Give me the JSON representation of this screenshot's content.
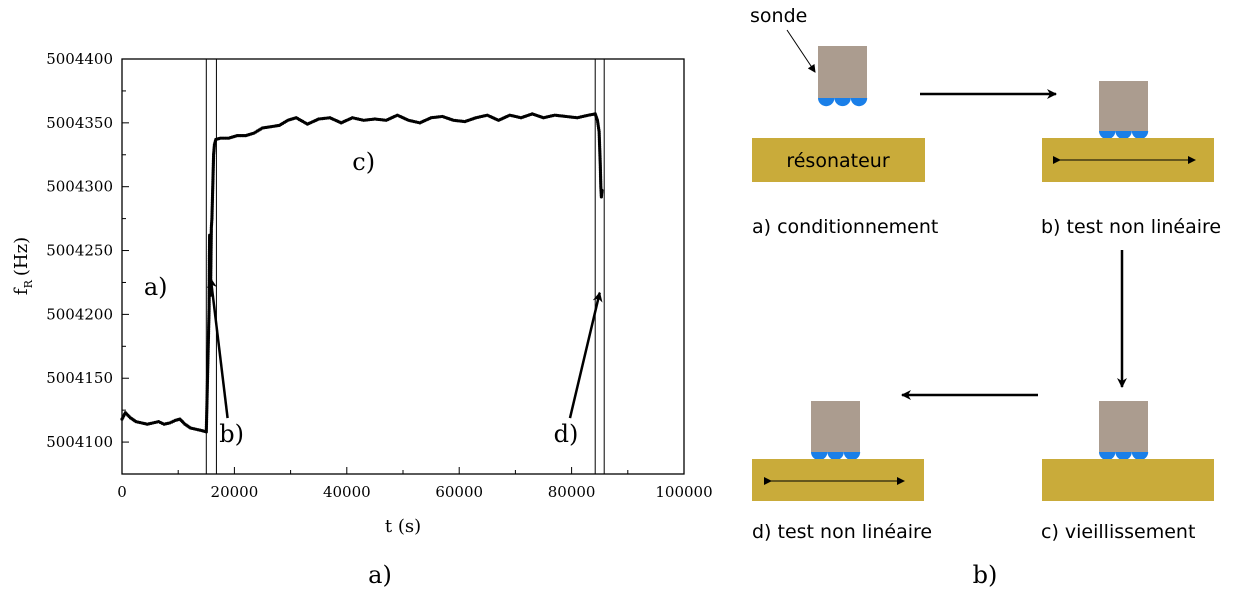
{
  "chart_data": {
    "type": "scatter",
    "title": "",
    "xlabel": "t (s)",
    "ylabel": "f",
    "ylabel_subscript": "R",
    "ylabel_unit": "(Hz)",
    "xlim": [
      0,
      100000
    ],
    "ylim": [
      5004075,
      5004400
    ],
    "xticks": [
      0,
      20000,
      40000,
      60000,
      80000,
      100000
    ],
    "yticks": [
      5004100,
      5004150,
      5004200,
      5004250,
      5004300,
      5004350,
      5004400
    ],
    "grid": false,
    "series": [
      {
        "points": [
          [
            0,
            5004118
          ],
          [
            600,
            5004123
          ],
          [
            1500,
            5004119
          ],
          [
            2500,
            5004116
          ],
          [
            3500,
            5004115
          ],
          [
            4500,
            5004114
          ],
          [
            5500,
            5004115
          ],
          [
            6500,
            5004116
          ],
          [
            7500,
            5004114
          ],
          [
            8500,
            5004115
          ],
          [
            9500,
            5004117
          ],
          [
            10300,
            5004118
          ],
          [
            11200,
            5004114
          ],
          [
            12200,
            5004111
          ],
          [
            13200,
            5004110
          ],
          [
            14200,
            5004109
          ],
          [
            15000,
            5004108
          ],
          [
            15500,
            5004205
          ],
          [
            15550,
            5004245
          ],
          [
            15600,
            5004262
          ],
          [
            15700,
            5004232
          ],
          [
            15750,
            5004215
          ],
          [
            15900,
            5004268
          ],
          [
            16000,
            5004275
          ],
          [
            16150,
            5004300
          ],
          [
            16300,
            5004325
          ],
          [
            16450,
            5004333
          ],
          [
            16700,
            5004337
          ],
          [
            17500,
            5004338
          ],
          [
            19000,
            5004338
          ],
          [
            20500,
            5004340
          ],
          [
            22000,
            5004340
          ],
          [
            23500,
            5004342
          ],
          [
            25000,
            5004346
          ],
          [
            26500,
            5004347
          ],
          [
            28000,
            5004348
          ],
          [
            29500,
            5004352
          ],
          [
            31000,
            5004354
          ],
          [
            33000,
            5004349
          ],
          [
            35000,
            5004353
          ],
          [
            37000,
            5004354
          ],
          [
            39000,
            5004350
          ],
          [
            41000,
            5004354
          ],
          [
            43000,
            5004352
          ],
          [
            45000,
            5004353
          ],
          [
            47000,
            5004352
          ],
          [
            49000,
            5004356
          ],
          [
            51000,
            5004352
          ],
          [
            53000,
            5004350
          ],
          [
            55000,
            5004354
          ],
          [
            57000,
            5004355
          ],
          [
            59000,
            5004352
          ],
          [
            61000,
            5004351
          ],
          [
            63000,
            5004354
          ],
          [
            65000,
            5004356
          ],
          [
            67000,
            5004352
          ],
          [
            69000,
            5004356
          ],
          [
            71000,
            5004354
          ],
          [
            73000,
            5004357
          ],
          [
            75000,
            5004354
          ],
          [
            77000,
            5004356
          ],
          [
            79000,
            5004355
          ],
          [
            81000,
            5004354
          ],
          [
            83000,
            5004356
          ],
          [
            84200,
            5004357
          ],
          [
            84600,
            5004352
          ],
          [
            84900,
            5004343
          ],
          [
            85000,
            5004330
          ],
          [
            85100,
            5004318
          ],
          [
            85200,
            5004300
          ],
          [
            85300,
            5004292
          ],
          [
            85400,
            5004297
          ]
        ]
      }
    ],
    "bands": [
      {
        "xmin": 15000,
        "xmax": 16800
      },
      {
        "xmin": 84200,
        "xmax": 85800
      }
    ],
    "annotations": [
      {
        "label": "a)",
        "x": 6000,
        "y": 5004215
      },
      {
        "label": "b)",
        "x": 19500,
        "y": 5004100,
        "arrow_to": [
          15800,
          5004228
        ]
      },
      {
        "label": "c)",
        "x": 43000,
        "y": 5004313
      },
      {
        "label": "d)",
        "x": 79000,
        "y": 5004100,
        "arrow_to": [
          85000,
          5004217
        ]
      }
    ]
  },
  "captions": {
    "left": "a)",
    "right": "b)"
  },
  "diagram": {
    "probe_label": "sonde",
    "resonator_label": "résonateur",
    "steps": [
      {
        "id": "a",
        "label": "a) conditionnement"
      },
      {
        "id": "b",
        "label": "b) test non linéaire"
      },
      {
        "id": "c",
        "label": "c) vieillissement"
      },
      {
        "id": "d",
        "label": "d) test non linéaire"
      }
    ],
    "colors": {
      "probe": "#ab9c8f",
      "resonator": "#c9ab3a",
      "contact": "#1a7fe8",
      "ink": "#000000"
    }
  }
}
